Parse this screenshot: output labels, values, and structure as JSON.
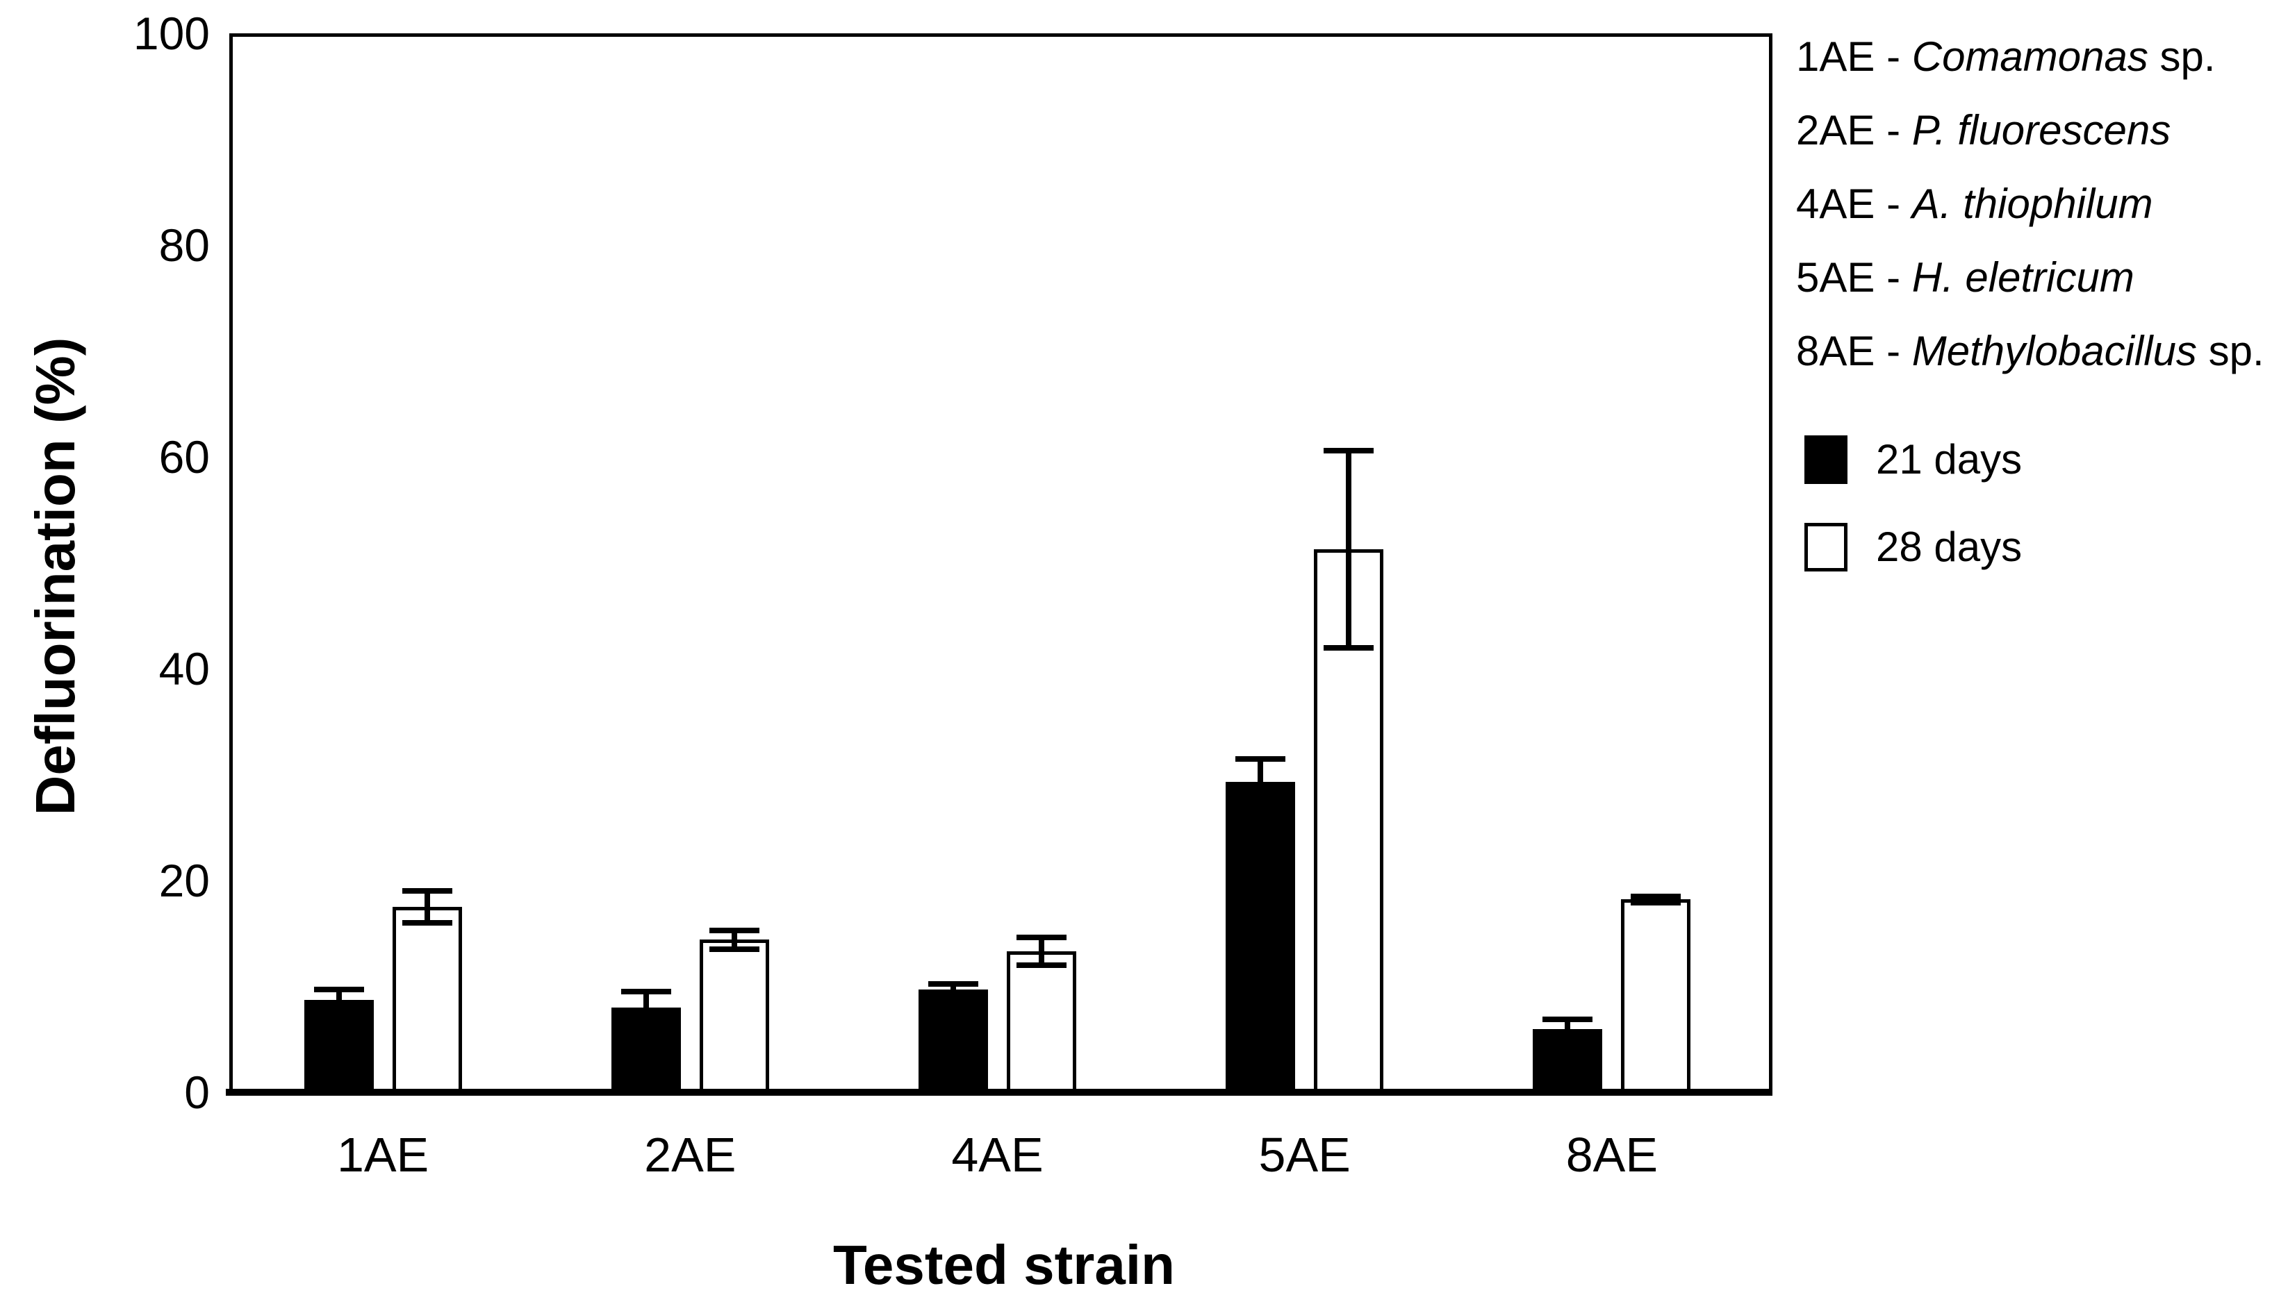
{
  "figure": {
    "background_color": "#ffffff",
    "ink_color": "#000000"
  },
  "chart_data": {
    "type": "bar",
    "title": "",
    "xlabel": "Tested strain",
    "ylabel": "Defluorination (%)",
    "ylim": [
      0,
      100
    ],
    "yticks": [
      0,
      20,
      40,
      60,
      80,
      100
    ],
    "grid": false,
    "legend_position": "right",
    "categories": [
      "1AE",
      "2AE",
      "4AE",
      "5AE",
      "8AE"
    ],
    "series": [
      {
        "name": "21 days",
        "fill": "#000000",
        "style": "filled",
        "values": [
          8.7,
          8.0,
          9.7,
          29.3,
          6.0
        ],
        "errors": [
          1.0,
          1.5,
          0.5,
          2.2,
          0.9
        ]
      },
      {
        "name": "28 days",
        "fill": "#ffffff",
        "style": "hollow",
        "values": [
          17.5,
          14.4,
          13.3,
          51.3,
          18.2
        ],
        "errors": [
          1.5,
          0.9,
          1.3,
          9.3,
          0.3
        ]
      }
    ]
  },
  "legend": {
    "separator": " - ",
    "strains": [
      {
        "code": "1AE",
        "species": "Comamonas",
        "suffix": " sp."
      },
      {
        "code": "2AE",
        "species": "P. fluorescens",
        "suffix": ""
      },
      {
        "code": "4AE",
        "species": "A. thiophilum",
        "suffix": ""
      },
      {
        "code": "5AE",
        "species": "H. eletricum",
        "suffix": ""
      },
      {
        "code": "8AE",
        "species": "Methylobacillus",
        "suffix": " sp."
      }
    ],
    "series_entries": [
      {
        "label": "21 days",
        "swatch": "filled"
      },
      {
        "label": "28 days",
        "swatch": "hollow"
      }
    ]
  }
}
